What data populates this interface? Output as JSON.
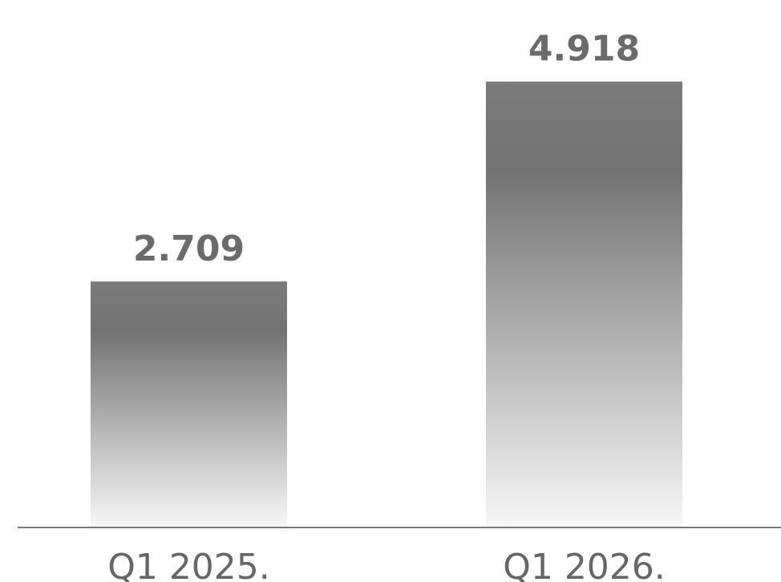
{
  "chart_data": {
    "type": "bar",
    "categories": [
      "Q1 2025.",
      "Q1 2026."
    ],
    "values": [
      2.709,
      4.918
    ],
    "color": "#737373",
    "ylim": [
      0,
      5.5
    ]
  }
}
